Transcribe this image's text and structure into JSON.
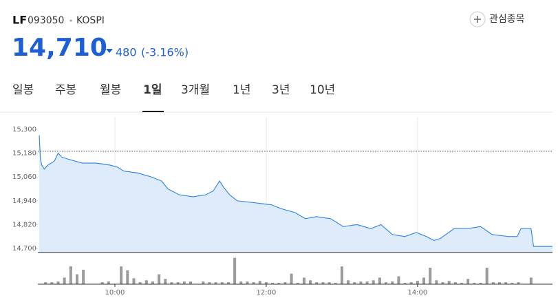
{
  "header": {
    "symbol": "LF",
    "code": "093050",
    "market": "KOSPI",
    "watch_button": "관심종목",
    "price": "14,710",
    "change": "480",
    "change_pct": "(-3.16%)"
  },
  "tabs": [
    "일봉",
    "주봉",
    "월봉",
    "1일",
    "3개월",
    "1년",
    "3년",
    "10년"
  ],
  "chart_data": [
    {
      "type": "line",
      "color": "#3b8be0",
      "fill_color": "#ddebfb",
      "x": [
        "09:00",
        "09:01",
        "09:02",
        "09:04",
        "09:07",
        "09:12",
        "09:15",
        "09:18",
        "09:23",
        "09:34",
        "09:45",
        "09:56",
        "10:02",
        "10:07",
        "10:18",
        "10:29",
        "10:37",
        "10:42",
        "10:51",
        "11:02",
        "11:12",
        "11:18",
        "11:23",
        "11:26",
        "11:31",
        "11:37",
        "11:51",
        "12:04",
        "12:12",
        "12:23",
        "12:31",
        "12:40",
        "12:51",
        "12:56",
        "13:01",
        "13:12",
        "13:23",
        "13:31",
        "13:40",
        "13:50",
        "13:59",
        "14:07",
        "14:13",
        "14:18",
        "14:29",
        "14:40",
        "14:50",
        "14:59",
        "15:12",
        "15:19",
        "15:22",
        "15:30",
        "15:32",
        "15:47"
      ],
      "values": [
        15270,
        15150,
        15120,
        15100,
        15120,
        15140,
        15180,
        15160,
        15150,
        15130,
        15130,
        15120,
        15110,
        15090,
        15080,
        15060,
        15040,
        15000,
        14970,
        14960,
        14970,
        14990,
        15040,
        15010,
        14970,
        14940,
        14930,
        14920,
        14900,
        14880,
        14850,
        14860,
        14850,
        14830,
        14810,
        14820,
        14800,
        14820,
        14770,
        14760,
        14780,
        14760,
        14740,
        14750,
        14800,
        14800,
        14810,
        14770,
        14760,
        14760,
        14800,
        14800,
        14710,
        14710
      ],
      "prev_close": 15190,
      "xlim": [
        "09:00",
        "15:47"
      ],
      "ylim": [
        14700,
        15300
      ],
      "yticks": [
        {
          "value": 15300,
          "label": "15,300"
        },
        {
          "value": 15180,
          "label": "15,180"
        },
        {
          "value": 15060,
          "label": "15,060"
        },
        {
          "value": 14940,
          "label": "14,940"
        },
        {
          "value": 14820,
          "label": "14,820"
        },
        {
          "value": 14700,
          "label": "14,700"
        }
      ],
      "xgrid": true
    },
    {
      "type": "bar",
      "color": "#9a9a9a",
      "x": [
        "09:05",
        "09:10",
        "09:15",
        "09:20",
        "09:25",
        "09:30",
        "09:35",
        "09:50",
        "09:55",
        "10:05",
        "10:10",
        "10:15",
        "10:20",
        "10:25",
        "10:30",
        "10:35",
        "10:40",
        "10:45",
        "10:50",
        "10:55",
        "11:00",
        "11:10",
        "11:15",
        "11:20",
        "11:25",
        "11:30",
        "11:35",
        "11:40",
        "11:45",
        "11:50",
        "11:55",
        "12:00",
        "12:05",
        "12:10",
        "12:15",
        "12:20",
        "12:25",
        "12:30",
        "12:35",
        "12:40",
        "12:45",
        "12:50",
        "12:55",
        "13:00",
        "13:05",
        "13:10",
        "13:15",
        "13:20",
        "13:25",
        "13:30",
        "13:35",
        "13:40",
        "13:45",
        "13:50",
        "13:55",
        "14:00",
        "14:05",
        "14:10",
        "14:15",
        "14:20",
        "14:25",
        "14:30",
        "14:35",
        "14:40",
        "14:45",
        "14:50",
        "14:55",
        "15:00",
        "15:05",
        "15:10",
        "15:15",
        "15:20",
        "15:30"
      ],
      "values": [
        3,
        3,
        4,
        10,
        27,
        15,
        22,
        3,
        4,
        27,
        21,
        9,
        3,
        6,
        4,
        15,
        8,
        3,
        3,
        4,
        4,
        4,
        3,
        3,
        3,
        3,
        40,
        4,
        4,
        3,
        5,
        3,
        2,
        2,
        3,
        16,
        2,
        10,
        6,
        3,
        3,
        3,
        2,
        27,
        6,
        3,
        4,
        4,
        6,
        10,
        3,
        4,
        12,
        2,
        3,
        5,
        10,
        25,
        6,
        3,
        5,
        3,
        2,
        8,
        2,
        2,
        25,
        3,
        3,
        3,
        2,
        3,
        10
      ],
      "xlim": [
        "09:00",
        "15:47"
      ],
      "ylim": [
        0,
        45
      ],
      "xticks": [
        "10:00",
        "12:00",
        "14:00"
      ]
    }
  ]
}
